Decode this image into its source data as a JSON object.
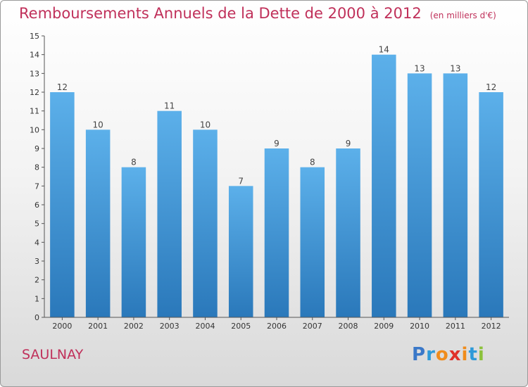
{
  "title": "Remboursements Annuels de la Dette de 2000 à 2012",
  "unit": "(en milliers d'€)",
  "commune": "SAULNAY",
  "logo": {
    "letters": [
      "P",
      "r",
      "o",
      "x",
      "i",
      "t",
      "i"
    ],
    "colors": [
      "#3a78c8",
      "#2e9ad8",
      "#f08c1c",
      "#e0302a",
      "#f08c1c",
      "#2e9ad8",
      "#8cc23c"
    ]
  },
  "colors": {
    "bar": "#4ea3e0",
    "title": "#c0305a",
    "axis": "#555555"
  },
  "chart_data": {
    "type": "bar",
    "categories": [
      "2000",
      "2001",
      "2002",
      "2003",
      "2004",
      "2005",
      "2006",
      "2007",
      "2008",
      "2009",
      "2010",
      "2011",
      "2012"
    ],
    "values": [
      12,
      10,
      8,
      11,
      10,
      7,
      9,
      8,
      9,
      14,
      13,
      13,
      12
    ],
    "ylim": [
      0,
      15
    ],
    "yticks": [
      0,
      1,
      2,
      3,
      4,
      5,
      6,
      7,
      8,
      9,
      10,
      11,
      12,
      13,
      14,
      15
    ],
    "grid": false,
    "data_labels": true
  }
}
